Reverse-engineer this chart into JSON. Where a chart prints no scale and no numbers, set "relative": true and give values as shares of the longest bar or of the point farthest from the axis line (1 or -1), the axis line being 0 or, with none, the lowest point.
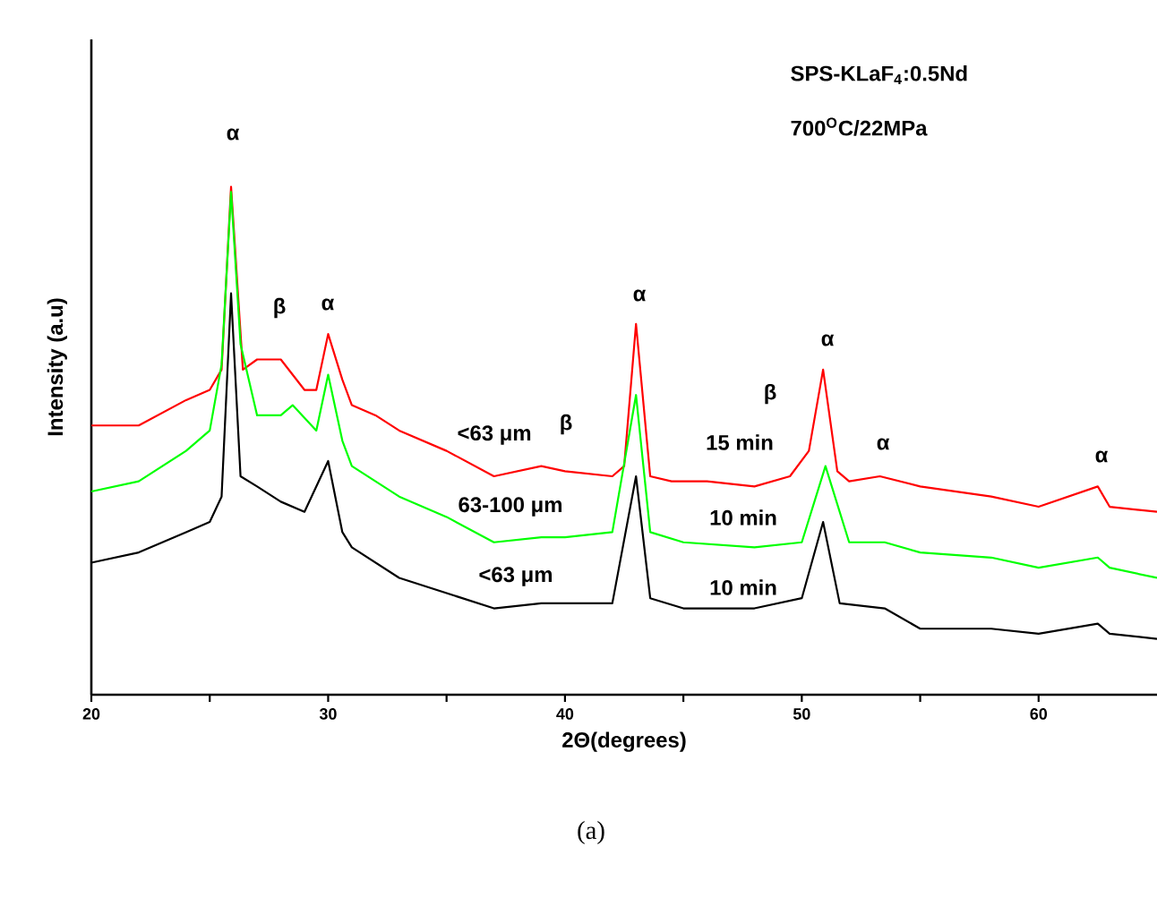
{
  "chart_data": {
    "type": "line",
    "title": "SPS-KLaF$_{4}$:0.5Nd",
    "subtitle": "700$^{O}$C/22MPa",
    "xlabel": "2Θ(degrees)",
    "ylabel": "Intensity (a.u)",
    "relative": true,
    "xlim": [
      20,
      65
    ],
    "xticks": [
      20,
      {
        "value": 25,
        "label": null
      },
      30,
      {
        "value": 35,
        "label": null
      },
      40,
      {
        "value": 45,
        "label": null
      },
      50,
      {
        "value": 55,
        "label": null
      },
      60
    ],
    "series": [
      {
        "color": "#ff0000",
        "x": [
          20,
          22,
          24,
          25,
          25.5,
          25.9,
          26.4,
          27,
          28,
          29,
          29.5,
          30,
          30.6,
          31,
          32,
          33,
          35,
          37,
          39,
          40,
          42,
          42.5,
          43,
          43.6,
          44.5,
          46,
          48,
          49.5,
          50.3,
          50.9,
          51.5,
          52,
          53.3,
          55,
          58,
          60,
          62.5,
          63,
          65
        ],
        "values": [
          0.53,
          0.53,
          0.58,
          0.6,
          0.64,
          1.0,
          0.64,
          0.66,
          0.66,
          0.6,
          0.6,
          0.71,
          0.62,
          0.57,
          0.55,
          0.52,
          0.48,
          0.43,
          0.45,
          0.44,
          0.43,
          0.45,
          0.73,
          0.43,
          0.42,
          0.42,
          0.41,
          0.43,
          0.48,
          0.64,
          0.44,
          0.42,
          0.43,
          0.41,
          0.39,
          0.37,
          0.41,
          0.37,
          0.36
        ]
      },
      {
        "color": "#00ff00",
        "x": [
          20,
          22,
          24,
          25,
          25.5,
          25.9,
          26.3,
          27,
          28,
          28.5,
          29.5,
          30,
          30.6,
          31,
          33,
          35,
          37,
          39,
          40,
          42,
          43,
          43.6,
          45,
          48,
          50,
          51.0,
          52,
          53.5,
          55,
          58,
          60,
          62.5,
          63,
          65
        ],
        "values": [
          0.4,
          0.42,
          0.48,
          0.52,
          0.65,
          0.99,
          0.69,
          0.55,
          0.55,
          0.57,
          0.52,
          0.63,
          0.5,
          0.45,
          0.39,
          0.35,
          0.3,
          0.31,
          0.31,
          0.32,
          0.59,
          0.32,
          0.3,
          0.29,
          0.3,
          0.45,
          0.3,
          0.3,
          0.28,
          0.27,
          0.25,
          0.27,
          0.25,
          0.23
        ]
      },
      {
        "color": "#000000",
        "x": [
          20,
          22,
          24,
          25,
          25.5,
          25.9,
          26.3,
          27,
          28,
          29,
          30,
          30.6,
          31,
          33,
          35,
          37,
          39,
          40,
          42,
          43,
          43.6,
          45,
          48,
          50,
          50.9,
          51.6,
          53.5,
          55,
          58,
          60,
          62.5,
          63,
          65
        ],
        "values": [
          0.26,
          0.28,
          0.32,
          0.34,
          0.39,
          0.79,
          0.43,
          0.41,
          0.38,
          0.36,
          0.46,
          0.32,
          0.29,
          0.23,
          0.2,
          0.17,
          0.18,
          0.18,
          0.18,
          0.43,
          0.19,
          0.17,
          0.17,
          0.19,
          0.34,
          0.18,
          0.17,
          0.13,
          0.13,
          0.12,
          0.14,
          0.12,
          0.11
        ]
      }
    ],
    "annotations": [
      "α",
      "β",
      "α",
      "β",
      "α",
      "β",
      "α",
      "α",
      "α",
      "<63 μm",
      "63-100 μm",
      "<63 μm",
      "15 min",
      "10 min",
      "10 min",
      "(a)"
    ]
  }
}
